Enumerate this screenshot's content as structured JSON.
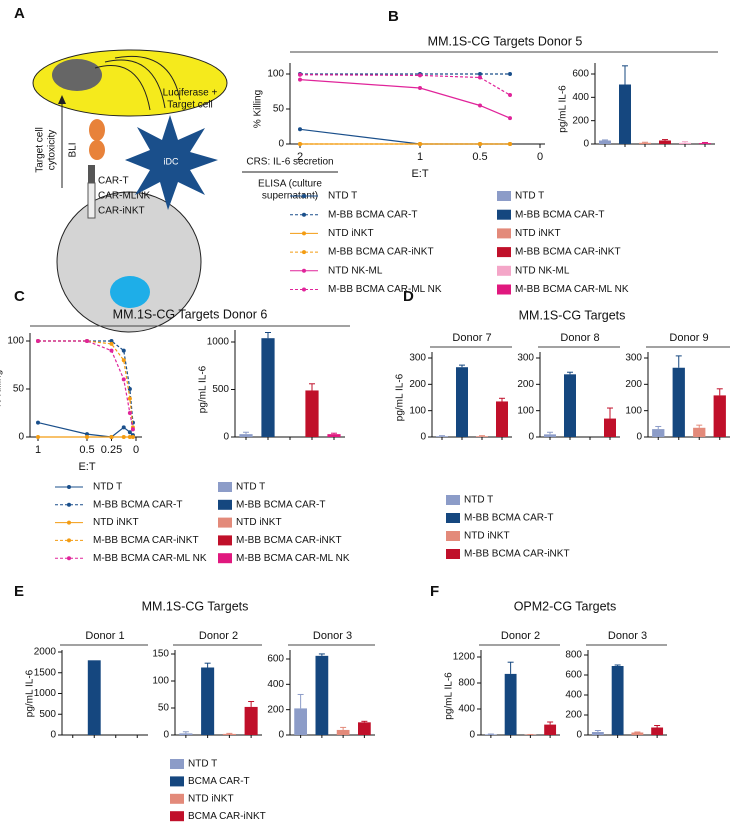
{
  "panel_labels": [
    "A",
    "B",
    "C",
    "D",
    "E",
    "F"
  ],
  "headings": [
    "MM.1S-CG Targets Donor 5",
    "MM.1S-CG Targets Donor 6",
    "MM.1S-CG Targets",
    "MM.1S-CG Targets",
    "OPM2-CG Targets"
  ],
  "diagram": {
    "cell_label": [
      "Luciferase +",
      "Target cell"
    ],
    "receptors": [
      "CAR-T",
      "CAR-MLNK",
      "CAR-iNKT"
    ],
    "readout_label": [
      "Target cell",
      "cytoxicity"
    ],
    "method": "BLI",
    "idc": "iDC",
    "crs": "CRS: IL-6 secretion",
    "elisa": [
      "ELISA (culture",
      "supernatant)"
    ]
  },
  "chart_data": [
    {
      "type": "line",
      "xlabel": "E:T",
      "ylabel": "% Killing",
      "x": [
        2,
        1,
        0.5,
        0.25
      ],
      "xlim": [
        2,
        0
      ],
      "xticks": [
        2,
        1,
        0.5,
        0
      ],
      "ylim": [
        0,
        100
      ],
      "yticks": [
        0,
        50,
        100
      ],
      "series": [
        {
          "name": "NTD T",
          "color": "#1a4f8b",
          "dash": false,
          "values": [
            21,
            0,
            0,
            0
          ]
        },
        {
          "name": "M-BB BCMA CAR-T",
          "color": "#1a4f8b",
          "dash": true,
          "values": [
            100,
            100,
            100,
            100
          ]
        },
        {
          "name": "NTD iNKT",
          "color": "#f39c12",
          "dash": false,
          "values": [
            0,
            0,
            0,
            0
          ]
        },
        {
          "name": "M-BB BCMA CAR-iNKT",
          "color": "#f39c12",
          "dash": true,
          "values": [
            0,
            0,
            0,
            0
          ]
        },
        {
          "name": "NTD NK-ML",
          "color": "#e0249a",
          "dash": false,
          "values": [
            92,
            80,
            55,
            37
          ]
        },
        {
          "name": "M-BB BCMA CAR-ML NK",
          "color": "#e0249a",
          "dash": true,
          "values": [
            99,
            98,
            95,
            70
          ]
        }
      ]
    },
    {
      "type": "bar",
      "ylabel": "pg/mL IL-6",
      "categories": [
        null
      ],
      "ylim": [
        0,
        600
      ],
      "yticks": [
        0,
        200,
        400,
        600
      ],
      "series": [
        {
          "name": "NTD T",
          "color": "#8c9cc8",
          "values": [
            30
          ],
          "errors": [
            5
          ]
        },
        {
          "name": "M-BB BCMA CAR-T",
          "color": "#15477f",
          "values": [
            510
          ],
          "errors": [
            160
          ]
        },
        {
          "name": "NTD iNKT",
          "color": "#e38a7a",
          "values": [
            10
          ],
          "errors": [
            5
          ]
        },
        {
          "name": "M-BB BCMA CAR-iNKT",
          "color": "#c0102a",
          "values": [
            30
          ],
          "errors": [
            8
          ]
        },
        {
          "name": "NTD NK-ML",
          "color": "#f4a6c8",
          "values": [
            10
          ],
          "errors": [
            10
          ]
        },
        {
          "name": "M-BB BCMA CAR-ML NK",
          "color": "#e0187e",
          "values": [
            8
          ],
          "errors": [
            5
          ]
        }
      ]
    },
    {
      "type": "line",
      "xlabel": "E:T",
      "ylabel": "% Killing",
      "x": [
        1,
        0.5,
        0.25,
        0.125,
        0.0625,
        0.03125
      ],
      "xlim": [
        1,
        0
      ],
      "xticks": [
        1,
        0.5,
        0.25,
        0
      ],
      "ylim": [
        0,
        100
      ],
      "yticks": [
        0,
        50,
        100
      ],
      "series": [
        {
          "name": "NTD T",
          "color": "#1a4f8b",
          "dash": false,
          "values": [
            15,
            3,
            0,
            10,
            5,
            2
          ]
        },
        {
          "name": "M-BB BCMA CAR-T",
          "color": "#1a4f8b",
          "dash": true,
          "values": [
            100,
            100,
            100,
            90,
            50,
            15
          ]
        },
        {
          "name": "NTD iNKT",
          "color": "#f39c12",
          "dash": false,
          "values": [
            0,
            0,
            0,
            0,
            0,
            0
          ]
        },
        {
          "name": "M-BB BCMA CAR-iNKT",
          "color": "#f39c12",
          "dash": true,
          "values": [
            100,
            100,
            97,
            80,
            40,
            10
          ]
        },
        {
          "name": "M-BB BCMA CAR-ML NK",
          "color": "#e0249a",
          "dash": true,
          "values": [
            100,
            100,
            90,
            60,
            25,
            8
          ]
        }
      ]
    },
    {
      "type": "bar",
      "ylabel": "pg/mL IL-6",
      "categories": [
        null
      ],
      "ylim": [
        0,
        1000
      ],
      "yticks": [
        0,
        500,
        1000
      ],
      "series": [
        {
          "name": "NTD T",
          "color": "#8c9cc8",
          "values": [
            30
          ],
          "errors": [
            20
          ]
        },
        {
          "name": "M-BB BCMA CAR-T",
          "color": "#15477f",
          "values": [
            1040
          ],
          "errors": [
            60
          ]
        },
        {
          "name": "NTD iNKT",
          "color": "#e38a7a",
          "values": [
            0
          ]
        },
        {
          "name": "M-BB BCMA CAR-iNKT",
          "color": "#c0102a",
          "values": [
            490
          ],
          "errors": [
            70
          ]
        },
        {
          "name": "M-BB BCMA CAR-ML NK",
          "color": "#e0187e",
          "values": [
            30
          ],
          "errors": [
            10
          ]
        }
      ]
    },
    {
      "type": "bar",
      "title": "Donor 7",
      "ylabel": "pg/mL IL-6",
      "categories": [
        null
      ],
      "ylim": [
        0,
        300
      ],
      "yticks": [
        0,
        100,
        200,
        300
      ],
      "series": [
        {
          "name": "NTD T",
          "color": "#8c9cc8",
          "values": [
            3
          ],
          "errors": [
            2
          ]
        },
        {
          "name": "M-BB BCMA CAR-T",
          "color": "#15477f",
          "values": [
            265
          ],
          "errors": [
            8
          ]
        },
        {
          "name": "NTD iNKT",
          "color": "#e38a7a",
          "values": [
            3
          ],
          "errors": [
            2
          ]
        },
        {
          "name": "M-BB BCMA CAR-iNKT",
          "color": "#c0102a",
          "values": [
            135
          ],
          "errors": [
            12
          ]
        }
      ]
    },
    {
      "type": "bar",
      "title": "Donor 8",
      "categories": [
        null
      ],
      "ylim": [
        0,
        300
      ],
      "yticks": [
        0,
        100,
        200,
        300
      ],
      "series": [
        {
          "name": "NTD T",
          "color": "#8c9cc8",
          "values": [
            10
          ],
          "errors": [
            8
          ]
        },
        {
          "name": "M-BB BCMA CAR-T",
          "color": "#15477f",
          "values": [
            238
          ],
          "errors": [
            8
          ]
        },
        {
          "name": "NTD iNKT",
          "color": "#e38a7a",
          "values": [
            0
          ]
        },
        {
          "name": "M-BB BCMA CAR-iNKT",
          "color": "#c0102a",
          "values": [
            70
          ],
          "errors": [
            40
          ]
        }
      ]
    },
    {
      "type": "bar",
      "title": "Donor 9",
      "categories": [
        null
      ],
      "ylim": [
        0,
        300
      ],
      "yticks": [
        0,
        100,
        200,
        300
      ],
      "series": [
        {
          "name": "NTD T",
          "color": "#8c9cc8",
          "values": [
            30
          ],
          "errors": [
            10
          ]
        },
        {
          "name": "M-BB BCMA CAR-T",
          "color": "#15477f",
          "values": [
            263
          ],
          "errors": [
            45
          ]
        },
        {
          "name": "NTD iNKT",
          "color": "#e38a7a",
          "values": [
            35
          ],
          "errors": [
            10
          ]
        },
        {
          "name": "M-BB BCMA CAR-iNKT",
          "color": "#c0102a",
          "values": [
            158
          ],
          "errors": [
            25
          ]
        }
      ]
    },
    {
      "type": "bar",
      "title": "Donor 1",
      "ylabel": "pg/mL IL-6",
      "categories": [
        null
      ],
      "ylim": [
        0,
        2000
      ],
      "yticks": [
        0,
        500,
        1000,
        1500,
        2000
      ],
      "series": [
        {
          "name": "NTD T",
          "color": "#8c9cc8",
          "values": [
            0
          ]
        },
        {
          "name": "BCMA CAR-T",
          "color": "#15477f",
          "values": [
            1800
          ]
        },
        {
          "name": "NTD iNKT",
          "color": "#e38a7a",
          "values": [
            0
          ]
        },
        {
          "name": "BCMA CAR-iNKT",
          "color": "#c0102a",
          "values": [
            0
          ]
        }
      ]
    },
    {
      "type": "bar",
      "title": "Donor 2",
      "categories": [
        null
      ],
      "ylim": [
        0,
        150
      ],
      "yticks": [
        0,
        50,
        100,
        150
      ],
      "series": [
        {
          "name": "NTD T",
          "color": "#8c9cc8",
          "values": [
            3
          ],
          "errors": [
            3
          ]
        },
        {
          "name": "BCMA CAR-T",
          "color": "#15477f",
          "values": [
            125
          ],
          "errors": [
            8
          ]
        },
        {
          "name": "NTD iNKT",
          "color": "#e38a7a",
          "values": [
            2
          ],
          "errors": [
            1
          ]
        },
        {
          "name": "BCMA CAR-iNKT",
          "color": "#c0102a",
          "values": [
            52
          ],
          "errors": [
            10
          ]
        }
      ]
    },
    {
      "type": "bar",
      "title": "Donor 3",
      "categories": [
        null
      ],
      "ylim": [
        0,
        600
      ],
      "yticks": [
        0,
        200,
        400,
        600
      ],
      "series": [
        {
          "name": "NTD T",
          "color": "#8c9cc8",
          "values": [
            210
          ],
          "errors": [
            110
          ]
        },
        {
          "name": "BCMA CAR-T",
          "color": "#15477f",
          "values": [
            625
          ],
          "errors": [
            15
          ]
        },
        {
          "name": "NTD iNKT",
          "color": "#e38a7a",
          "values": [
            40
          ],
          "errors": [
            20
          ]
        },
        {
          "name": "BCMA CAR-iNKT",
          "color": "#c0102a",
          "values": [
            100
          ],
          "errors": [
            8
          ]
        }
      ]
    },
    {
      "type": "bar",
      "title": "Donor 2",
      "ylabel": "pg/mL IL-6",
      "categories": [
        null
      ],
      "ylim": [
        0,
        1200
      ],
      "yticks": [
        0,
        400,
        800,
        1200
      ],
      "series": [
        {
          "name": "NTD T",
          "color": "#8c9cc8",
          "values": [
            10
          ],
          "errors": [
            5
          ]
        },
        {
          "name": "BCMA CAR-T",
          "color": "#15477f",
          "values": [
            940
          ],
          "errors": [
            180
          ]
        },
        {
          "name": "NTD iNKT",
          "color": "#e38a7a",
          "values": [
            5
          ],
          "errors": [
            3
          ]
        },
        {
          "name": "BCMA CAR-iNKT",
          "color": "#c0102a",
          "values": [
            160
          ],
          "errors": [
            40
          ]
        }
      ]
    },
    {
      "type": "bar",
      "title": "Donor 3",
      "categories": [
        null
      ],
      "ylim": [
        0,
        800
      ],
      "yticks": [
        0,
        200,
        400,
        600,
        800
      ],
      "series": [
        {
          "name": "NTD T",
          "color": "#8c9cc8",
          "values": [
            30
          ],
          "errors": [
            15
          ]
        },
        {
          "name": "BCMA CAR-T",
          "color": "#15477f",
          "values": [
            690
          ],
          "errors": [
            10
          ]
        },
        {
          "name": "NTD iNKT",
          "color": "#e38a7a",
          "values": [
            25
          ],
          "errors": [
            5
          ]
        },
        {
          "name": "BCMA CAR-iNKT",
          "color": "#c0102a",
          "values": [
            75
          ],
          "errors": [
            20
          ]
        }
      ]
    }
  ]
}
